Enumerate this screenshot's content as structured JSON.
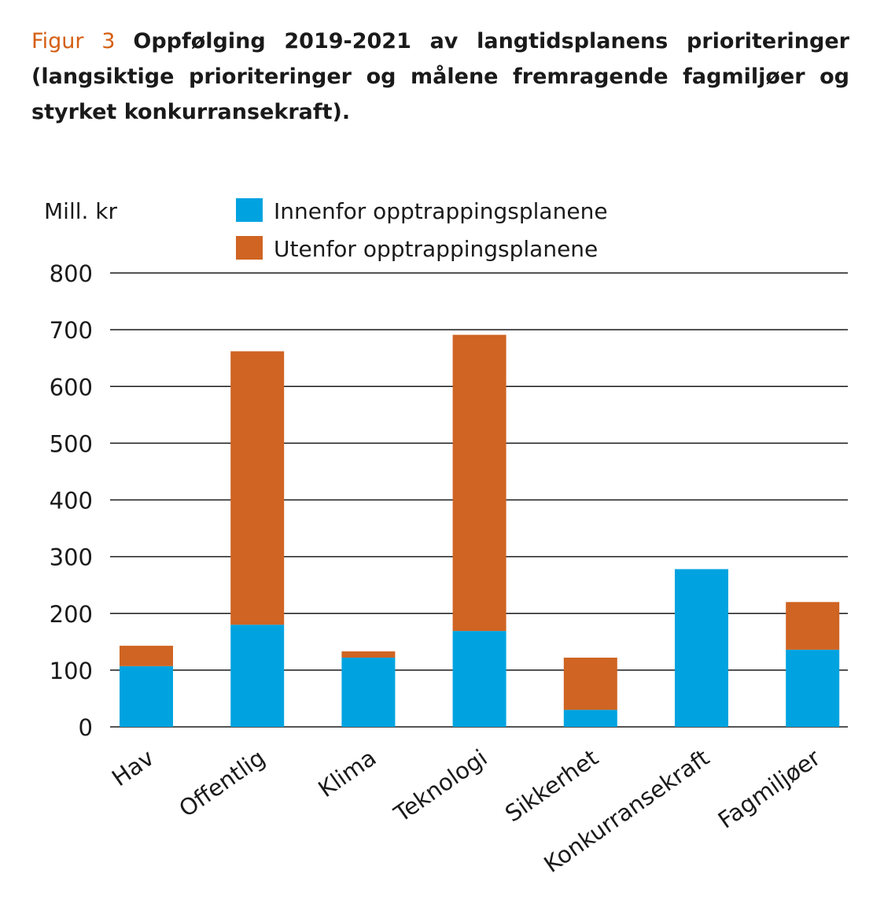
{
  "figure": {
    "label": "Figur 3",
    "caption": "Oppfølging 2019-2021 av langtidsplanens prioriteringer (langsiktige prioriteringer og målene fremragende fagmiljøer og styrket konkurransekraft)."
  },
  "colors": {
    "innenfor": "#00a3e0",
    "utenfor": "#cf6423",
    "grid": "#1a1a1a",
    "label_accent": "#d45f14"
  },
  "chart_data": {
    "type": "bar",
    "stacked": true,
    "unit_label": "Mill. kr",
    "ylim": [
      0,
      800
    ],
    "yticks": [
      0,
      100,
      200,
      300,
      400,
      500,
      600,
      700,
      800
    ],
    "grid": true,
    "legend_position": "top",
    "categories": [
      "Hav",
      "Offentlig",
      "Klima",
      "Teknologi",
      "Sikkerhet",
      "Konkurransekraft",
      "Fagmiljøer"
    ],
    "series": [
      {
        "name": "Innenfor opptrappingsplanene",
        "color": "#00a3e0",
        "values": [
          107,
          180,
          122,
          169,
          30,
          278,
          136
        ]
      },
      {
        "name": "Utenfor opptrappingsplanene",
        "color": "#cf6423",
        "values": [
          36,
          482,
          11,
          522,
          92,
          0,
          84
        ]
      }
    ]
  }
}
